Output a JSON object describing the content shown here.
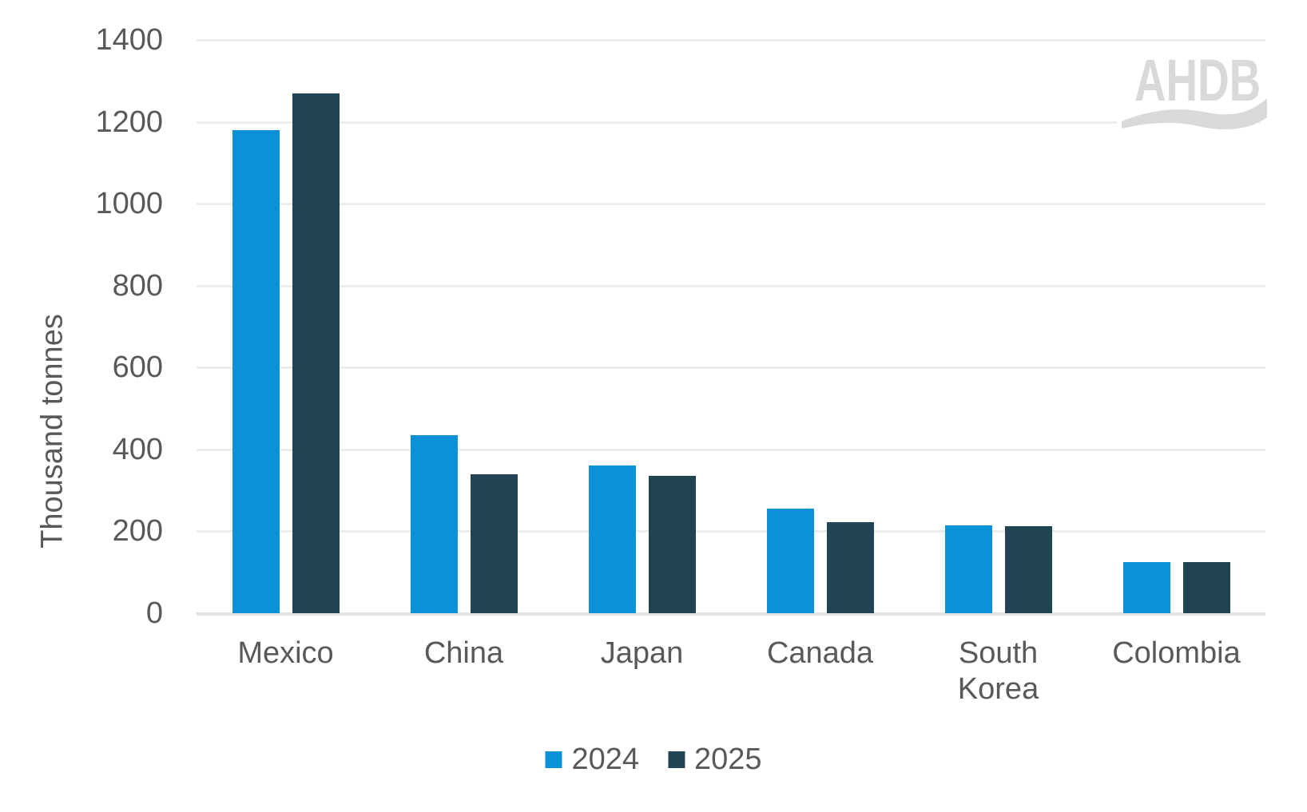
{
  "colors": {
    "series_2024": "#0a91d6",
    "series_2025": "#214452",
    "gridline": "#ececec",
    "baseline": "#e2e2e2",
    "axis_text": "#595959",
    "logo": "#d9d9d9",
    "background": "#ffffff"
  },
  "logo": {
    "text": "AHDB"
  },
  "y_axis": {
    "title": "Thousand tonnes"
  },
  "chart_data": {
    "type": "bar",
    "title": "",
    "xlabel": "",
    "ylabel": "Thousand tonnes",
    "ylim": [
      0,
      1400
    ],
    "ytick_interval": 200,
    "yticks": [
      0,
      200,
      400,
      600,
      800,
      1000,
      1200,
      1400
    ],
    "grid": true,
    "legend_position": "bottom",
    "categories": [
      "Mexico",
      "China",
      "Japan",
      "Canada",
      "South Korea",
      "Colombia"
    ],
    "series": [
      {
        "name": "2024",
        "color_key": "series_2024",
        "values": [
          1180,
          435,
          360,
          255,
          215,
          125
        ]
      },
      {
        "name": "2025",
        "color_key": "series_2025",
        "values": [
          1270,
          340,
          335,
          222,
          212,
          125
        ]
      }
    ]
  }
}
